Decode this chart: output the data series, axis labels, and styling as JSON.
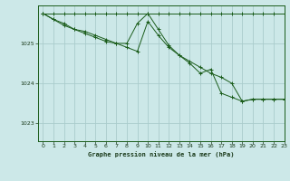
{
  "background_color": "#cce8e8",
  "grid_color": "#aacccc",
  "line_color": "#1a5c1a",
  "text_color": "#1a3a1a",
  "xlabel": "Graphe pression niveau de la mer (hPa)",
  "xlim": [
    -0.5,
    23
  ],
  "ylim": [
    1022.55,
    1025.95
  ],
  "yticks": [
    1023,
    1024,
    1025
  ],
  "xticks": [
    0,
    1,
    2,
    3,
    4,
    5,
    6,
    7,
    8,
    9,
    10,
    11,
    12,
    13,
    14,
    15,
    16,
    17,
    18,
    19,
    20,
    21,
    22,
    23
  ],
  "line1_x": [
    0,
    1,
    2,
    3,
    4,
    5,
    6,
    7,
    8,
    9,
    10,
    11,
    12,
    13,
    14,
    15,
    16,
    17,
    18,
    19,
    20,
    21,
    22,
    23
  ],
  "line1_y": [
    1025.75,
    1025.75,
    1025.75,
    1025.75,
    1025.75,
    1025.75,
    1025.75,
    1025.75,
    1025.75,
    1025.75,
    1025.75,
    1025.75,
    1025.75,
    1025.75,
    1025.75,
    1025.75,
    1025.75,
    1025.75,
    1025.75,
    1025.75,
    1025.75,
    1025.75,
    1025.75,
    1025.75
  ],
  "line2_x": [
    0,
    1,
    2,
    3,
    4,
    5,
    6,
    7,
    8,
    9,
    10,
    11,
    12,
    13,
    14,
    15,
    16,
    17,
    18,
    19,
    20,
    21,
    22,
    23
  ],
  "line2_y": [
    1025.75,
    1025.6,
    1025.5,
    1025.35,
    1025.3,
    1025.2,
    1025.1,
    1025.0,
    1024.9,
    1024.8,
    1025.55,
    1025.2,
    1024.9,
    1024.7,
    1024.55,
    1024.4,
    1024.25,
    1024.15,
    1024.0,
    1023.55,
    1023.6,
    1023.6,
    1023.6,
    1023.6
  ],
  "line3_x": [
    0,
    1,
    2,
    3,
    4,
    5,
    6,
    7,
    8,
    9,
    10,
    11,
    12,
    13,
    14,
    15,
    16,
    17,
    18,
    19,
    20,
    21,
    22,
    23
  ],
  "line3_y": [
    1025.75,
    1025.6,
    1025.45,
    1025.35,
    1025.25,
    1025.15,
    1025.05,
    1025.0,
    1025.0,
    1025.5,
    1025.75,
    1025.35,
    1024.95,
    1024.7,
    1024.5,
    1024.25,
    1024.35,
    1023.75,
    1023.65,
    1023.55,
    1023.6,
    1023.6,
    1023.6,
    1023.6
  ],
  "figsize": [
    3.2,
    2.0
  ],
  "dpi": 100
}
